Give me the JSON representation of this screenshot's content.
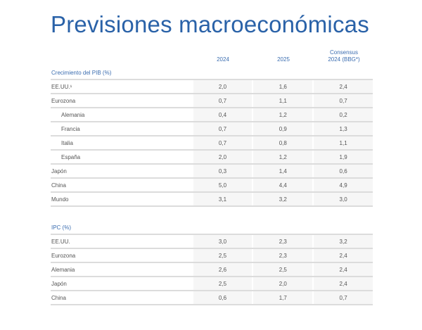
{
  "title": "Previsiones macroeconómicas",
  "columns": [
    "2024",
    "2025",
    "Consensus\n2024 (BBG*)"
  ],
  "columns_lines": {
    "c3a": "Consensus",
    "c3b": "2024 (BBG*)"
  },
  "sections": [
    {
      "label": "Crecimiento del PIB (%)",
      "rows": [
        {
          "name": "EE.UU.¹",
          "v": [
            "2,0",
            "1,6",
            "2,4"
          ],
          "indent": false
        },
        {
          "name": "Eurozona",
          "v": [
            "0,7",
            "1,1",
            "0,7"
          ],
          "indent": false
        },
        {
          "name": "Alemania",
          "v": [
            "0,4",
            "1,2",
            "0,2"
          ],
          "indent": true
        },
        {
          "name": "Francia",
          "v": [
            "0,7",
            "0,9",
            "1,3"
          ],
          "indent": true
        },
        {
          "name": "Italia",
          "v": [
            "0,7",
            "0,8",
            "1,1"
          ],
          "indent": true
        },
        {
          "name": "España",
          "v": [
            "2,0",
            "1,2",
            "1,9"
          ],
          "indent": true
        },
        {
          "name": "Japón",
          "v": [
            "0,3",
            "1,4",
            "0,6"
          ],
          "indent": false
        },
        {
          "name": "China",
          "v": [
            "5,0",
            "4,4",
            "4,9"
          ],
          "indent": false
        },
        {
          "name": "Mundo",
          "v": [
            "3,1",
            "3,2",
            "3,0"
          ],
          "indent": false
        }
      ]
    },
    {
      "label": "IPC (%)",
      "rows": [
        {
          "name": "EE.UU.",
          "v": [
            "3,0",
            "2,3",
            "3,2"
          ],
          "indent": false
        },
        {
          "name": "Eurozona",
          "v": [
            "2,5",
            "2,3",
            "2,4"
          ],
          "indent": false
        },
        {
          "name": "Alemania",
          "v": [
            "2,6",
            "2,5",
            "2,4"
          ],
          "indent": false
        },
        {
          "name": "Japón",
          "v": [
            "2,5",
            "2,0",
            "2,4"
          ],
          "indent": false
        },
        {
          "name": "China",
          "v": [
            "0,6",
            "1,7",
            "0,7"
          ],
          "indent": false
        }
      ]
    }
  ]
}
